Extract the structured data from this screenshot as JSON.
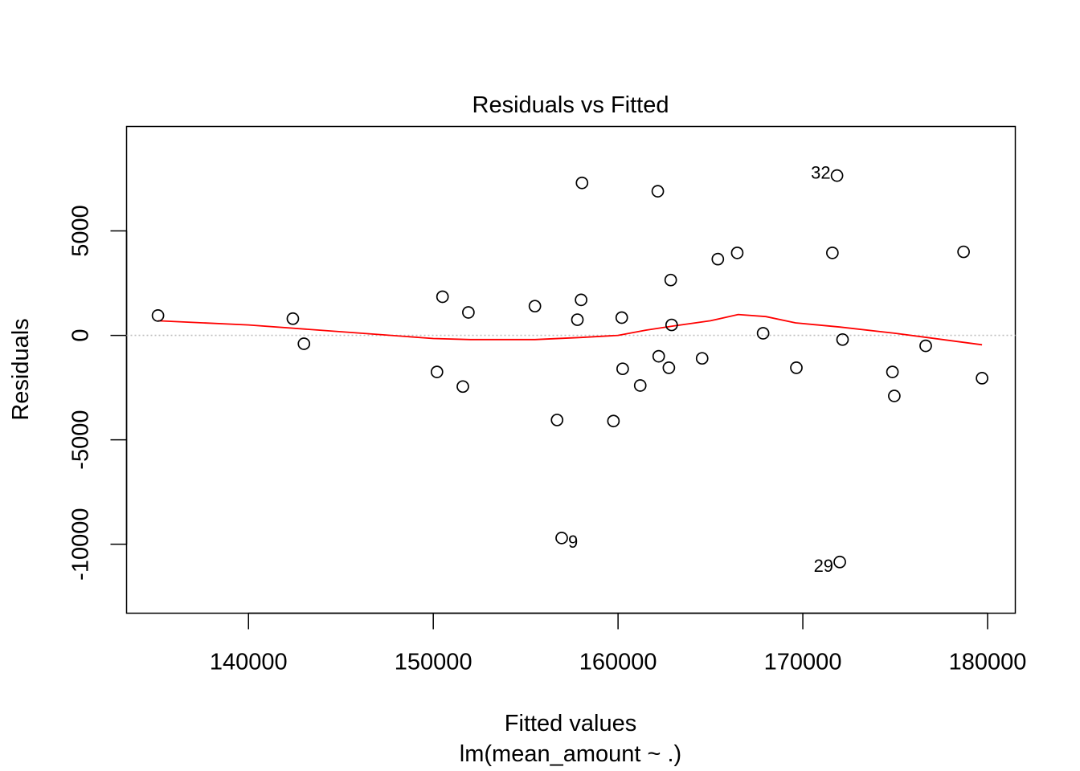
{
  "chart_data": {
    "type": "scatter",
    "title": "Residuals vs Fitted",
    "xlabel": "Fitted values",
    "sublabel": "lm(mean_amount ~ .)",
    "ylabel": "Residuals",
    "xlim": [
      133400,
      181500
    ],
    "ylim": [
      -13300,
      10000
    ],
    "x_ticks": [
      140000,
      150000,
      160000,
      170000,
      180000
    ],
    "x_tick_labels": [
      "140000",
      "150000",
      "160000",
      "170000",
      "180000"
    ],
    "y_ticks": [
      -10000,
      -5000,
      0,
      5000
    ],
    "y_tick_labels": [
      "-10000",
      "-5000",
      "0",
      "5000"
    ],
    "reference_line": {
      "y": 0,
      "color": "#bebebe",
      "style": "dotted"
    },
    "points": [
      {
        "x": 135100,
        "y": 950
      },
      {
        "x": 142400,
        "y": 800
      },
      {
        "x": 143000,
        "y": -400
      },
      {
        "x": 150200,
        "y": -1750
      },
      {
        "x": 150500,
        "y": 1850
      },
      {
        "x": 151600,
        "y": -2450
      },
      {
        "x": 151900,
        "y": 1100
      },
      {
        "x": 155500,
        "y": 1400
      },
      {
        "x": 156700,
        "y": -4050
      },
      {
        "x": 156950,
        "y": -9700,
        "label": "9"
      },
      {
        "x": 157800,
        "y": 750
      },
      {
        "x": 158000,
        "y": 1700
      },
      {
        "x": 158050,
        "y": 7300
      },
      {
        "x": 159750,
        "y": -4100
      },
      {
        "x": 160200,
        "y": 850
      },
      {
        "x": 160250,
        "y": -1600
      },
      {
        "x": 161200,
        "y": -2400
      },
      {
        "x": 162150,
        "y": 6900
      },
      {
        "x": 162200,
        "y": -1000
      },
      {
        "x": 162750,
        "y": -1550
      },
      {
        "x": 162850,
        "y": 2650
      },
      {
        "x": 162900,
        "y": 500
      },
      {
        "x": 164550,
        "y": -1100
      },
      {
        "x": 165400,
        "y": 3650
      },
      {
        "x": 166450,
        "y": 3950
      },
      {
        "x": 167850,
        "y": 100
      },
      {
        "x": 169650,
        "y": -1550
      },
      {
        "x": 171600,
        "y": 3950
      },
      {
        "x": 171850,
        "y": 7650,
        "label": "32"
      },
      {
        "x": 172000,
        "y": -10850,
        "label": "29"
      },
      {
        "x": 172150,
        "y": -200
      },
      {
        "x": 174850,
        "y": -1750
      },
      {
        "x": 174950,
        "y": -2900
      },
      {
        "x": 176650,
        "y": -500
      },
      {
        "x": 178700,
        "y": 4000
      },
      {
        "x": 179700,
        "y": -2050
      }
    ],
    "smooth": {
      "color": "#ff0000",
      "x": [
        135100,
        140000,
        150000,
        152000,
        155500,
        158000,
        160000,
        161500,
        163000,
        165000,
        166500,
        168000,
        169600,
        172000,
        175000,
        179700
      ],
      "y": [
        700,
        500,
        -150,
        -200,
        -200,
        -100,
        0,
        250,
        450,
        700,
        1000,
        900,
        600,
        400,
        100,
        -450
      ]
    }
  }
}
